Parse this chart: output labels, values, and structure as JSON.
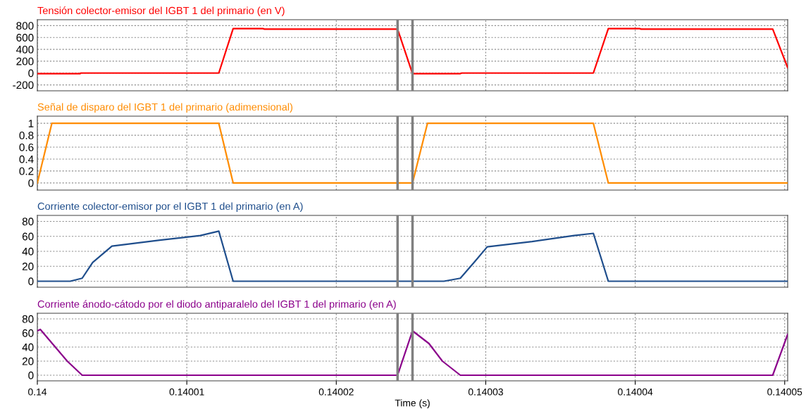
{
  "chart_data": [
    {
      "type": "line",
      "title": "Tensión colector-emisor del IGBT 1 del primario (en V)",
      "tick_labels": "y",
      "grid": true,
      "xlim": [
        0.14,
        0.1400502
      ],
      "xticks": [
        0.14,
        0.14001,
        0.14002,
        0.14003,
        0.14004,
        0.14005
      ],
      "ylim": [
        -300,
        900
      ],
      "yticks": [
        -200,
        0,
        200,
        400,
        600,
        800
      ],
      "series": [
        {
          "color": "#ff0000",
          "x": [
            0.14,
            0.14000286,
            0.1400029,
            0.14001214,
            0.1400131,
            0.1400151,
            0.1400152,
            0.1400241,
            0.1400251,
            0.1400283,
            0.1400284,
            0.1400372,
            0.1400382,
            0.1400403,
            0.1400404,
            0.1400492,
            0.1400502
          ],
          "values": [
            -10,
            -10,
            0,
            0,
            750,
            750,
            740,
            740,
            -10,
            -10,
            0,
            0,
            750,
            750,
            740,
            740,
            90
          ]
        }
      ],
      "ref_lines": [
        {
          "axis": "x",
          "value": 0.1400241,
          "color": "#808080"
        },
        {
          "axis": "x",
          "value": 0.1400251,
          "color": "#808080"
        }
      ]
    },
    {
      "type": "line",
      "title": "Señal de disparo del IGBT 1 del primario (adimensional)",
      "tick_labels": "y",
      "grid": true,
      "xlim": [
        0.14,
        0.1400502
      ],
      "xticks": [
        0.14,
        0.14001,
        0.14002,
        0.14003,
        0.14004,
        0.14005
      ],
      "ylim": [
        -0.12,
        1.12
      ],
      "yticks": [
        0,
        0.2,
        0.4,
        0.6,
        0.8,
        1
      ],
      "series": [
        {
          "color": "#ff8c00",
          "x": [
            0.14,
            0.14000097,
            0.14001214,
            0.1400131,
            0.1400251,
            0.1400261,
            0.1400372,
            0.1400382,
            0.1400502
          ],
          "values": [
            0,
            1,
            1,
            0,
            0,
            1,
            1,
            0,
            0
          ]
        }
      ],
      "ref_lines": [
        {
          "axis": "x",
          "value": 0.1400241,
          "color": "#808080"
        },
        {
          "axis": "x",
          "value": 0.1400251,
          "color": "#808080"
        }
      ]
    },
    {
      "type": "line",
      "title": "Corriente colector-emisor por el IGBT 1 del primario (en A)",
      "tick_labels": "y",
      "grid": true,
      "xlim": [
        0.14,
        0.1400502
      ],
      "xticks": [
        0.14,
        0.14001,
        0.14002,
        0.14003,
        0.14004,
        0.14005
      ],
      "ylim": [
        -8,
        88
      ],
      "yticks": [
        0,
        20,
        40,
        60,
        80
      ],
      "series": [
        {
          "color": "#1f4e8c",
          "x": [
            0.14,
            0.1400022,
            0.140003,
            0.1400037,
            0.14000499,
            0.1400082,
            0.1400109,
            0.14001214,
            0.1400131,
            0.1400272,
            0.1400283,
            0.1400293,
            0.1400301,
            0.1400331,
            0.1400359,
            0.1400372,
            0.1400382,
            0.1400502
          ],
          "values": [
            0,
            0,
            4,
            25,
            47,
            55,
            61,
            67,
            0,
            0,
            4,
            27,
            46,
            53,
            61,
            64,
            0,
            0
          ]
        }
      ],
      "ref_lines": [
        {
          "axis": "x",
          "value": 0.1400241,
          "color": "#808080"
        },
        {
          "axis": "x",
          "value": 0.1400251,
          "color": "#808080"
        }
      ]
    },
    {
      "type": "line",
      "title": "Corriente ánodo-cátodo por el diodo antiparalelo del IGBT 1 del primario (en A)",
      "xlabel": "Time (s)",
      "grid": true,
      "xlim": [
        0.14,
        0.1400502
      ],
      "xticks": [
        0.14,
        0.14001,
        0.14002,
        0.14003,
        0.14004,
        0.14005
      ],
      "ylim": [
        -8,
        88
      ],
      "yticks": [
        0,
        20,
        40,
        60,
        80
      ],
      "series": [
        {
          "color": "#8b008b",
          "x": [
            0.14,
            0.1400002,
            0.140002,
            0.140003,
            0.1400241,
            0.1400251,
            0.1400262,
            0.1400271,
            0.1400283,
            0.1400492,
            0.1400502
          ],
          "values": [
            63,
            65,
            20,
            0,
            0,
            63,
            45,
            20,
            0,
            0,
            58
          ]
        }
      ],
      "ref_lines": [
        {
          "axis": "x",
          "value": 0.1400241,
          "color": "#808080"
        },
        {
          "axis": "x",
          "value": 0.1400251,
          "color": "#808080"
        }
      ]
    }
  ]
}
